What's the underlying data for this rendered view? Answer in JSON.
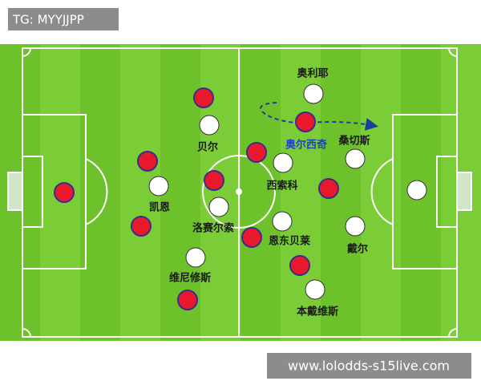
{
  "header": {
    "tag": "TG: MYYJJPP"
  },
  "watermark": "www.lolodds-s15live.com",
  "players": [
    {
      "label": "奥利耶"
    },
    {
      "label": "贝尔"
    },
    {
      "label": "奥尔西奇"
    },
    {
      "label": "桑切斯"
    },
    {
      "label": "西索科"
    },
    {
      "label": "凯恩"
    },
    {
      "label": "洛赛尔索"
    },
    {
      "label": "恩东贝莱"
    },
    {
      "label": "戴尔"
    },
    {
      "label": "维尼修斯"
    },
    {
      "label": "本戴维斯"
    }
  ]
}
